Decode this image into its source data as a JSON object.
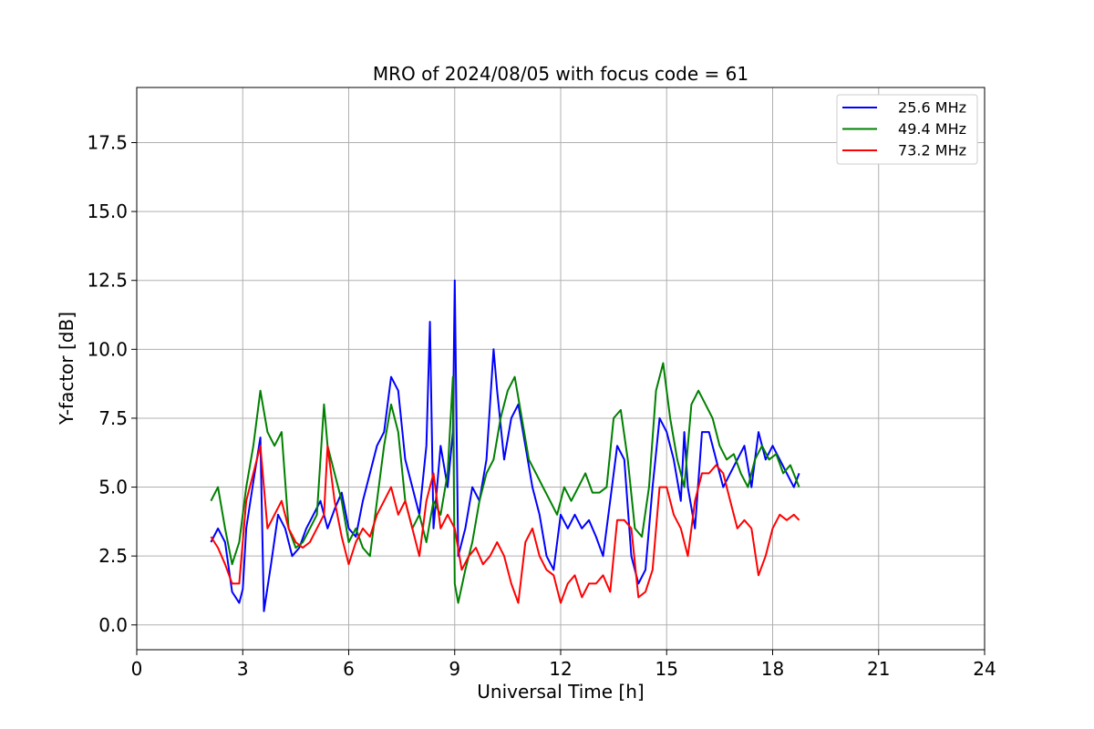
{
  "chart_data": {
    "type": "line",
    "title": "MRO of 2024/08/05 with focus code = 61",
    "xlabel": "Universal Time [h]",
    "ylabel": "Y-factor [dB]",
    "xlim": [
      0,
      24
    ],
    "ylim": [
      -0.9,
      19.5
    ],
    "xticks": [
      0,
      3,
      6,
      9,
      12,
      15,
      18,
      21,
      24
    ],
    "yticks": [
      0.0,
      2.5,
      5.0,
      7.5,
      10.0,
      12.5,
      15.0,
      17.5
    ],
    "xtick_labels": [
      "0",
      "3",
      "6",
      "9",
      "12",
      "15",
      "18",
      "21",
      "24"
    ],
    "ytick_labels": [
      "0.0",
      "2.5",
      "5.0",
      "7.5",
      "10.0",
      "12.5",
      "15.0",
      "17.5"
    ],
    "grid": true,
    "legend_position": "top-right",
    "series": [
      {
        "name": "25.6 MHz",
        "color": "#0000ff",
        "x": [
          2.1,
          2.3,
          2.5,
          2.7,
          2.9,
          3.0,
          3.1,
          3.3,
          3.5,
          3.6,
          3.8,
          4.0,
          4.2,
          4.4,
          4.6,
          4.8,
          5.0,
          5.2,
          5.4,
          5.6,
          5.8,
          6.0,
          6.2,
          6.4,
          6.6,
          6.8,
          7.0,
          7.2,
          7.4,
          7.6,
          7.8,
          8.0,
          8.2,
          8.3,
          8.4,
          8.6,
          8.8,
          8.95,
          9.0,
          9.1,
          9.3,
          9.5,
          9.7,
          9.9,
          10.1,
          10.2,
          10.4,
          10.6,
          10.8,
          11.0,
          11.2,
          11.4,
          11.6,
          11.8,
          12.0,
          12.2,
          12.4,
          12.6,
          12.8,
          13.0,
          13.2,
          13.4,
          13.6,
          13.8,
          14.0,
          14.2,
          14.4,
          14.6,
          14.8,
          15.0,
          15.2,
          15.4,
          15.5,
          15.6,
          15.8,
          16.0,
          16.2,
          16.4,
          16.6,
          16.8,
          17.0,
          17.2,
          17.4,
          17.6,
          17.8,
          18.0,
          18.2,
          18.4,
          18.6,
          18.75
        ],
        "y": [
          3.0,
          3.5,
          3.0,
          1.2,
          0.8,
          1.3,
          3.5,
          5.2,
          6.8,
          0.5,
          2.2,
          4.0,
          3.5,
          2.5,
          2.8,
          3.5,
          4.0,
          4.5,
          3.5,
          4.2,
          4.8,
          3.5,
          3.2,
          4.5,
          5.5,
          6.5,
          7.0,
          9.0,
          8.5,
          6.0,
          5.0,
          4.0,
          6.5,
          11.0,
          3.5,
          6.5,
          5.0,
          7.0,
          12.5,
          2.5,
          3.5,
          5.0,
          4.5,
          6.0,
          10.0,
          8.5,
          6.0,
          7.5,
          8.0,
          6.5,
          5.0,
          4.0,
          2.5,
          2.0,
          4.0,
          3.5,
          4.0,
          3.5,
          3.8,
          3.2,
          2.5,
          4.5,
          6.5,
          6.0,
          2.5,
          1.5,
          2.0,
          5.0,
          7.5,
          7.0,
          6.0,
          4.5,
          7.0,
          5.0,
          3.5,
          7.0,
          7.0,
          6.0,
          5.0,
          5.5,
          6.0,
          6.5,
          5.0,
          7.0,
          6.0,
          6.5,
          6.0,
          5.5,
          5.0,
          5.5
        ]
      },
      {
        "name": "49.4 MHz",
        "color": "#008000",
        "x": [
          2.1,
          2.3,
          2.5,
          2.7,
          2.9,
          3.1,
          3.3,
          3.5,
          3.7,
          3.9,
          4.1,
          4.3,
          4.5,
          4.7,
          4.9,
          5.1,
          5.3,
          5.4,
          5.6,
          5.8,
          6.0,
          6.2,
          6.4,
          6.6,
          6.8,
          7.0,
          7.2,
          7.4,
          7.6,
          7.8,
          8.0,
          8.2,
          8.4,
          8.6,
          8.8,
          8.95,
          9.0,
          9.1,
          9.3,
          9.5,
          9.7,
          9.9,
          10.1,
          10.3,
          10.5,
          10.7,
          10.9,
          11.1,
          11.3,
          11.5,
          11.7,
          11.9,
          12.1,
          12.3,
          12.5,
          12.7,
          12.9,
          13.1,
          13.3,
          13.5,
          13.7,
          13.9,
          14.1,
          14.3,
          14.5,
          14.7,
          14.9,
          15.1,
          15.3,
          15.5,
          15.7,
          15.9,
          16.1,
          16.3,
          16.5,
          16.7,
          16.9,
          17.1,
          17.3,
          17.5,
          17.7,
          17.9,
          18.1,
          18.3,
          18.5,
          18.75
        ],
        "y": [
          4.5,
          5.0,
          3.5,
          2.2,
          3.0,
          5.0,
          6.5,
          8.5,
          7.0,
          6.5,
          7.0,
          3.5,
          2.8,
          3.0,
          3.5,
          4.0,
          8.0,
          6.5,
          5.5,
          4.5,
          3.0,
          3.5,
          2.8,
          2.5,
          4.5,
          6.5,
          8.0,
          7.0,
          4.5,
          3.5,
          4.0,
          3.0,
          4.5,
          4.0,
          5.5,
          9.0,
          1.5,
          0.8,
          2.0,
          3.0,
          4.5,
          5.5,
          6.0,
          7.5,
          8.5,
          9.0,
          7.5,
          6.0,
          5.5,
          5.0,
          4.5,
          4.0,
          5.0,
          4.5,
          5.0,
          5.5,
          4.8,
          4.8,
          5.0,
          7.5,
          7.8,
          6.0,
          3.5,
          3.2,
          5.0,
          8.5,
          9.5,
          7.5,
          6.0,
          5.0,
          8.0,
          8.5,
          8.0,
          7.5,
          6.5,
          6.0,
          6.2,
          5.5,
          5.0,
          6.0,
          6.5,
          6.0,
          6.2,
          5.5,
          5.8,
          5.0
        ]
      },
      {
        "name": "73.2 MHz",
        "color": "#ff0000",
        "x": [
          2.1,
          2.3,
          2.5,
          2.7,
          2.9,
          3.1,
          3.3,
          3.5,
          3.7,
          3.9,
          4.1,
          4.3,
          4.5,
          4.7,
          4.9,
          5.1,
          5.3,
          5.4,
          5.6,
          5.8,
          6.0,
          6.2,
          6.4,
          6.6,
          6.8,
          7.0,
          7.2,
          7.4,
          7.6,
          7.8,
          8.0,
          8.2,
          8.4,
          8.6,
          8.8,
          9.0,
          9.2,
          9.4,
          9.6,
          9.8,
          10.0,
          10.2,
          10.4,
          10.6,
          10.8,
          11.0,
          11.2,
          11.4,
          11.6,
          11.8,
          12.0,
          12.2,
          12.4,
          12.6,
          12.8,
          13.0,
          13.2,
          13.4,
          13.6,
          13.8,
          14.0,
          14.2,
          14.4,
          14.6,
          14.8,
          15.0,
          15.2,
          15.4,
          15.6,
          15.8,
          16.0,
          16.2,
          16.4,
          16.6,
          16.8,
          17.0,
          17.2,
          17.4,
          17.6,
          17.8,
          18.0,
          18.2,
          18.4,
          18.6,
          18.75
        ],
        "y": [
          3.2,
          2.8,
          2.2,
          1.5,
          1.5,
          4.5,
          5.5,
          6.5,
          3.5,
          4.0,
          4.5,
          3.5,
          3.0,
          2.8,
          3.0,
          3.5,
          4.0,
          6.5,
          4.5,
          3.2,
          2.2,
          3.0,
          3.5,
          3.2,
          4.0,
          4.5,
          5.0,
          4.0,
          4.5,
          3.5,
          2.5,
          4.5,
          5.5,
          3.5,
          4.0,
          3.5,
          2.0,
          2.5,
          2.8,
          2.2,
          2.5,
          3.0,
          2.5,
          1.5,
          0.8,
          3.0,
          3.5,
          2.5,
          2.0,
          1.8,
          0.8,
          1.5,
          1.8,
          1.0,
          1.5,
          1.5,
          1.8,
          1.2,
          3.8,
          3.8,
          3.5,
          1.0,
          1.2,
          2.0,
          5.0,
          5.0,
          4.0,
          3.5,
          2.5,
          4.5,
          5.5,
          5.5,
          5.8,
          5.5,
          4.5,
          3.5,
          3.8,
          3.5,
          1.8,
          2.5,
          3.5,
          4.0,
          3.8,
          4.0,
          3.8
        ]
      }
    ]
  }
}
